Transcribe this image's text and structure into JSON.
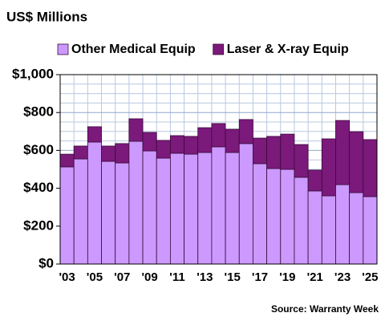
{
  "chart_data": {
    "type": "stacked_bar",
    "title": "US$ Millions",
    "source": "Source: Warranty Week",
    "categories": [
      "'03",
      null,
      "'05",
      null,
      "'07",
      null,
      "'09",
      null,
      "'11",
      null,
      "'13",
      null,
      "'15",
      null,
      "'17",
      null,
      "'19",
      null,
      "'21",
      null,
      "'23",
      null,
      "'25"
    ],
    "series": [
      {
        "name": "Other Medical Equip",
        "color": "#cc99ff",
        "values": [
          513,
          555,
          644,
          542,
          534,
          648,
          597,
          559,
          585,
          580,
          589,
          619,
          589,
          636,
          530,
          504,
          500,
          458,
          386,
          360,
          419,
          377,
          356
        ]
      },
      {
        "name": "Laser & X-ray Equip",
        "color": "#7b1a7b",
        "values": [
          67,
          68,
          81,
          81,
          102,
          119,
          98,
          94,
          93,
          94,
          131,
          123,
          123,
          127,
          135,
          170,
          186,
          173,
          110,
          301,
          339,
          322,
          301
        ]
      }
    ],
    "ylim": [
      0,
      1000
    ],
    "yticks": [
      {
        "value": 0,
        "label": "$0"
      },
      {
        "value": 200,
        "label": "$200"
      },
      {
        "value": 400,
        "label": "$400"
      },
      {
        "value": 600,
        "label": "$600"
      },
      {
        "value": 800,
        "label": "$800"
      },
      {
        "value": 1000,
        "label": "$1,000"
      }
    ],
    "grid": true,
    "legend": "top"
  }
}
